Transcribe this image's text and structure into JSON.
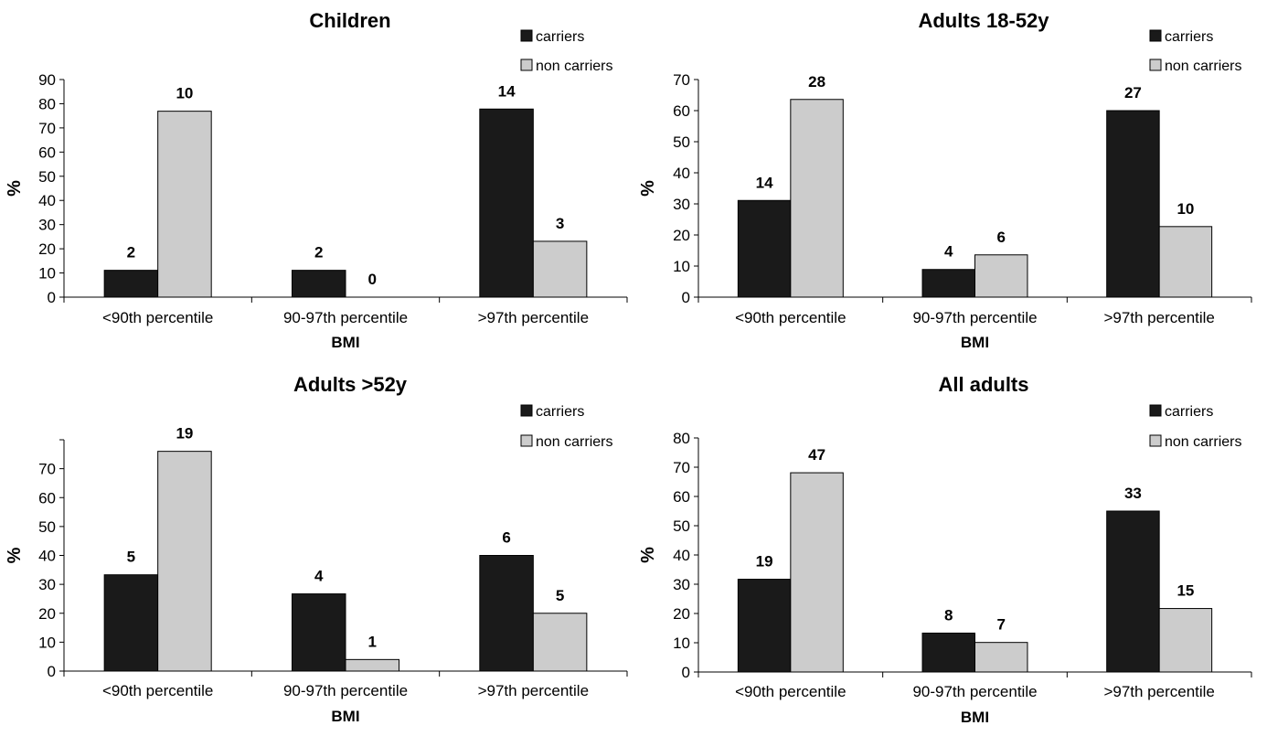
{
  "chart_data": [
    {
      "type": "bar",
      "title": "Children",
      "xlabel": "BMI",
      "ylabel": "%",
      "ylim": [
        0,
        90
      ],
      "ystep": 10,
      "categories": [
        "<90th percentile",
        "90-97th percentile",
        ">97th percentile"
      ],
      "series": [
        {
          "name": "carriers",
          "color": "#1a1a1a",
          "values": [
            11.1,
            11.1,
            77.8
          ],
          "labels": [
            "2",
            "2",
            "14"
          ]
        },
        {
          "name": "non carriers",
          "color": "#cccccc",
          "values": [
            76.9,
            0,
            23.1
          ],
          "labels": [
            "10",
            "0",
            "3"
          ]
        }
      ],
      "legend": "top-right",
      "grid": false
    },
    {
      "type": "bar",
      "title": "Adults 18-52y",
      "xlabel": "BMI",
      "ylabel": "%",
      "ylim": [
        0,
        70
      ],
      "ystep": 10,
      "categories": [
        "<90th percentile",
        "90-97th  percentile",
        ">97th percentile"
      ],
      "series": [
        {
          "name": "carriers",
          "color": "#1a1a1a",
          "values": [
            31.1,
            8.9,
            60.0
          ],
          "labels": [
            "14",
            "4",
            "27"
          ]
        },
        {
          "name": "non carriers",
          "color": "#cccccc",
          "values": [
            63.6,
            13.6,
            22.7
          ],
          "labels": [
            "28",
            "6",
            "10"
          ]
        }
      ],
      "legend": "top-right",
      "grid": false
    },
    {
      "type": "bar",
      "title": "Adults >52y",
      "xlabel": "BMI",
      "ylabel": "%",
      "ylim": [
        0,
        80
      ],
      "ystep": 10,
      "hide_top_tick": true,
      "categories": [
        "<90th percentile",
        "90-97th  percentile",
        ">97th percentile"
      ],
      "series": [
        {
          "name": "carriers",
          "color": "#1a1a1a",
          "values": [
            33.3,
            26.7,
            40.0
          ],
          "labels": [
            "5",
            "4",
            "6"
          ]
        },
        {
          "name": "non carriers",
          "color": "#cccccc",
          "values": [
            76.0,
            4.0,
            20.0
          ],
          "labels": [
            "19",
            "1",
            "5"
          ]
        }
      ],
      "legend": "top-right",
      "grid": false
    },
    {
      "type": "bar",
      "title": "All adults",
      "xlabel": "BMI",
      "ylabel": "%",
      "ylim": [
        0,
        80
      ],
      "ystep": 10,
      "categories": [
        "<90th percentile",
        "90-97th  percentile",
        ">97th percentile"
      ],
      "series": [
        {
          "name": "carriers",
          "color": "#1a1a1a",
          "values": [
            31.7,
            13.3,
            55.0
          ],
          "labels": [
            "19",
            "8",
            "33"
          ]
        },
        {
          "name": "non carriers",
          "color": "#cccccc",
          "values": [
            68.1,
            10.1,
            21.7
          ],
          "labels": [
            "47",
            "7",
            "15"
          ]
        }
      ],
      "legend": "top-right",
      "grid": false
    }
  ]
}
